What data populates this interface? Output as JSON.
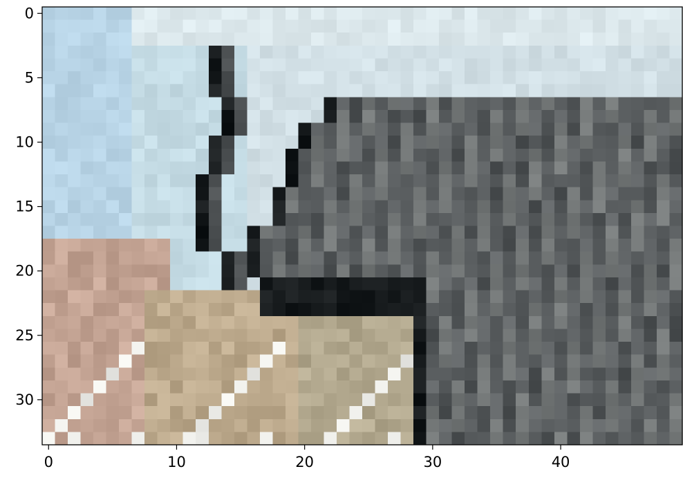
{
  "chart_data": {
    "type": "heatmap",
    "title": "",
    "xlabel": "",
    "ylabel": "",
    "image_size": {
      "cols": 50,
      "rows": 34
    },
    "xlim": [
      -0.5,
      49.5
    ],
    "ylim": [
      33.5,
      -0.5
    ],
    "x_ticks": [
      0,
      10,
      20,
      30,
      40
    ],
    "y_ticks": [
      0,
      5,
      10,
      15,
      20,
      25,
      30
    ],
    "x_tick_labels": [
      "0",
      "10",
      "20",
      "30",
      "40"
    ],
    "y_tick_labels": [
      "0",
      "5",
      "10",
      "15",
      "20",
      "25",
      "30"
    ],
    "grid": false,
    "legend": "none",
    "palette": {
      "sky_light": "#d2e0e6",
      "sky_mid": "#c4dbe4",
      "sky_blue": "#b8d4e6",
      "sky_pale": "#dce8ec",
      "ground_tan": "#bca98c",
      "ground_pink": "#c4a494",
      "ground_olive": "#b4aa90",
      "grass_white": "#eeeeea",
      "elephant_dark": "#4e5254",
      "elephant_mid": "#606466",
      "elephant_light": "#747878",
      "trunk_black": "#161a1c"
    }
  }
}
